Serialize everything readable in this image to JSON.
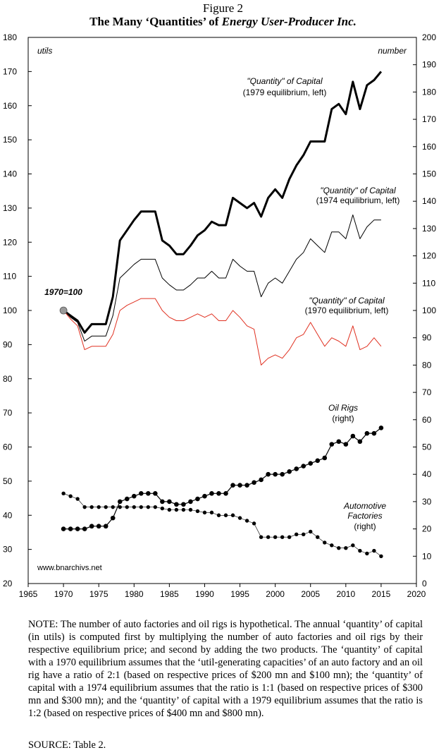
{
  "figure": {
    "number": "Figure 2",
    "title_prefix": "The Many ‘Quantities’ of ",
    "title_italic": "Energy User-Producer Inc."
  },
  "note": "NOTE: The number of auto factories and oil rigs is hypothetical. The annual ‘quantity’ of capital (in utils) is computed first by multiplying the number of auto factories and oil rigs by their respective equilibrium price; and second by adding the two products. The ‘quantity’ of capital with a 1970 equilibrium assumes that the ‘util-generating capacities’ of an auto factory and an oil rig have a ratio of 2:1 (based on respective prices of $200 mn and $100 mn); the ‘quantity’ of capital with a 1974 equilibrium assumes that the ratio is 1:1 (based on respective prices of $300 mn and $300 mn); and the ‘quantity’ of capital with a 1979 equilibrium assumes that the ratio is 1:2 (based on respective prices of $400 mn and $800 mn).",
  "source": "SOURCE: Table 2.",
  "chart_data": {
    "type": "line",
    "xlim": [
      1965,
      2020
    ],
    "x_ticks": [
      1965,
      1970,
      1975,
      1980,
      1985,
      1990,
      1995,
      2000,
      2005,
      2010,
      2015,
      2020
    ],
    "left_axis": {
      "label": "utils",
      "ylim": [
        20,
        180
      ],
      "ticks": [
        20,
        30,
        40,
        50,
        60,
        70,
        80,
        90,
        100,
        110,
        120,
        130,
        140,
        150,
        160,
        170,
        180
      ]
    },
    "right_axis": {
      "label": "number",
      "ylim": [
        0,
        200
      ],
      "ticks": [
        0,
        10,
        20,
        30,
        40,
        50,
        60,
        70,
        80,
        90,
        100,
        110,
        120,
        130,
        140,
        150,
        160,
        170,
        180,
        190,
        200
      ]
    },
    "x": [
      1970,
      1971,
      1972,
      1973,
      1974,
      1975,
      1976,
      1977,
      1978,
      1979,
      1980,
      1981,
      1982,
      1983,
      1984,
      1985,
      1986,
      1987,
      1988,
      1989,
      1990,
      1991,
      1992,
      1993,
      1994,
      1995,
      1996,
      1997,
      1998,
      1999,
      2000,
      2001,
      2002,
      2003,
      2004,
      2005,
      2006,
      2007,
      2008,
      2009,
      2010,
      2011,
      2012,
      2013,
      2014,
      2015
    ],
    "base_marker": {
      "x": 1970,
      "y": 100,
      "label": "1970=100",
      "color": "#9a9a9a"
    },
    "series": [
      {
        "name": "\"Quantity\" of Capital (1979 equilibrium, left)",
        "label_line1": "\"Quantity\" of Capital",
        "label_line2": "(1979 equilibrium, left)",
        "axis": "left",
        "color": "#000000",
        "weight": "thick",
        "values": [
          100,
          98.5,
          97,
          93.5,
          96,
          96,
          96,
          104,
          120.5,
          123.5,
          126.5,
          129,
          129,
          129,
          120.5,
          119,
          116.5,
          116.5,
          119,
          122,
          123.5,
          126,
          125,
          125,
          133,
          131.5,
          130,
          131.5,
          127.5,
          133,
          135.5,
          133,
          138.5,
          142.5,
          145.5,
          149.5,
          149.5,
          149.5,
          159,
          160.5,
          157.5,
          167,
          159,
          166,
          167.5,
          170
        ]
      },
      {
        "name": "\"Quantity\" of Capital (1974 equilibrium, left)",
        "label_line1": "\"Quantity\" of Capital",
        "label_line2": "(1974 equilibrium, left)",
        "axis": "left",
        "color": "#000000",
        "weight": "thin",
        "values": [
          100,
          98,
          96.5,
          91,
          92.5,
          92.5,
          92.5,
          98.5,
          109.5,
          111.5,
          113.5,
          115,
          115,
          115,
          109.5,
          107.5,
          106,
          106,
          107.5,
          109.5,
          109.5,
          111.5,
          109.5,
          109.5,
          115,
          113,
          111.5,
          111.5,
          104,
          108,
          109.5,
          108,
          111.5,
          115,
          117,
          121,
          119,
          117,
          123,
          123,
          121,
          128,
          121,
          124.5,
          126.5,
          126.5
        ]
      },
      {
        "name": "\"Quantity\" of Capital (1970 equilibrium, left)",
        "label_line1": "\"Quantity\" of Capital",
        "label_line2": "(1970 equilibrium, left)",
        "axis": "left",
        "color": "#e03020",
        "weight": "thin",
        "values": [
          100,
          97.5,
          95.5,
          88.5,
          89.5,
          89.5,
          89.5,
          93,
          100,
          101.5,
          102.5,
          103.5,
          103.5,
          103.5,
          100,
          98,
          97,
          97,
          98,
          99,
          98,
          99,
          97,
          97,
          100,
          98,
          95.5,
          94.5,
          84,
          86,
          87,
          86,
          88.5,
          92,
          93,
          96.5,
          93,
          89.5,
          92,
          91,
          89.5,
          95.5,
          88.5,
          89.5,
          92,
          89.5
        ]
      },
      {
        "name": "Oil Rigs (right)",
        "label_line1": "Oil Rigs",
        "label_line2": "(right)",
        "axis": "right",
        "color": "#000000",
        "weight": "markers",
        "values": [
          20,
          20,
          20,
          20,
          21,
          21,
          21,
          24,
          30,
          31,
          32,
          33,
          33,
          33,
          30,
          30,
          29,
          29,
          30,
          31,
          32,
          33,
          33,
          33,
          36,
          36,
          36,
          37,
          38,
          40,
          40,
          40,
          41,
          42,
          43,
          44,
          45,
          46,
          51,
          52,
          51,
          54,
          52,
          55,
          55,
          57
        ]
      },
      {
        "name": "Automotive Factories (right)",
        "label_line1": "Automotive",
        "label_line2": "Factories",
        "label_line3": "(right)",
        "axis": "right",
        "color": "#000000",
        "weight": "dots",
        "values": [
          33,
          32,
          31,
          28,
          28,
          28,
          28,
          28,
          28,
          28,
          28,
          28,
          28,
          28,
          27.5,
          27,
          27,
          27,
          27,
          26.5,
          26,
          26,
          25,
          25,
          25,
          24,
          23,
          22,
          17,
          17,
          17,
          17,
          17,
          18,
          18,
          19,
          17,
          15,
          14,
          13,
          13,
          14,
          12,
          11,
          12,
          10
        ]
      }
    ],
    "watermark": "www.bnarchivs.net"
  }
}
